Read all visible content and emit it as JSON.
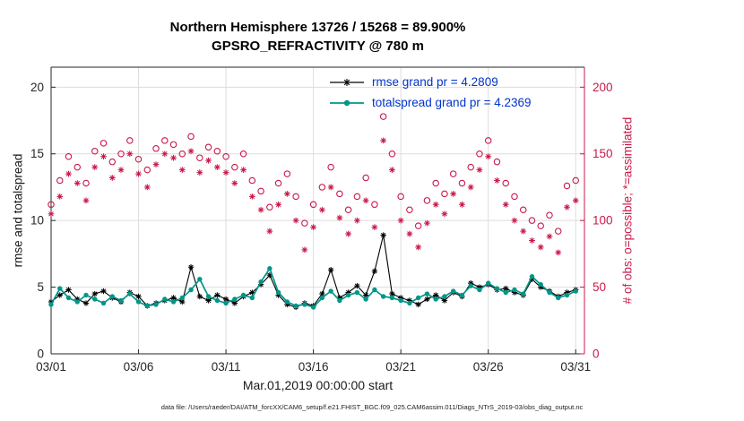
{
  "colors": {
    "obs_pink": "#C9184A",
    "rmse_black": "#000000",
    "spread_teal": "#009688",
    "legend_blue": "#0033CC",
    "axis_dark": "#262626",
    "grid_gray": "#DDDDDD"
  },
  "footer": {
    "caption": "data file: /Users/raeder/DAI/ATM_forcXX/CAM6_setup/f.e21.FHIST_BGC.f09_025.CAM6assim.011/Diags_NTrS_2019-03/obs_diag_output.nc"
  },
  "chart_data": {
    "type": "line",
    "title": "Northern Hemisphere 13726 / 15268 = 89.900%",
    "subtitle": "GPSRO_REFRACTIVITY @ 780 m",
    "xlabel": "Mar.01,2019 00:00:00 start",
    "ylabel_left": "rmse and totalspread",
    "ylabel_right": "# of obs: o=possible; *=assimilated",
    "grid": true,
    "legend_position": "top-center-inside",
    "xlim": [
      1,
      31.5
    ],
    "ylim_left": [
      0,
      21.5
    ],
    "ylim_right": [
      0,
      215
    ],
    "x_start_day": 1,
    "x_step_days": 0.5,
    "x_ticks": [
      {
        "day": 1,
        "label": "03/01"
      },
      {
        "day": 6,
        "label": "03/06"
      },
      {
        "day": 11,
        "label": "03/11"
      },
      {
        "day": 16,
        "label": "03/16"
      },
      {
        "day": 21,
        "label": "03/21"
      },
      {
        "day": 26,
        "label": "03/26"
      },
      {
        "day": 31,
        "label": "03/31"
      }
    ],
    "y_left_ticks": [
      0,
      5,
      10,
      15,
      20
    ],
    "y_right_ticks": [
      0,
      50,
      100,
      150,
      200
    ],
    "series": [
      {
        "name": "rmse grand pr = 4.2809",
        "axis": "left",
        "color": "#000000",
        "marker": "asterisk",
        "marker_size": 3.2,
        "line": true,
        "line_width": 1.1,
        "values": [
          3.9,
          4.4,
          4.8,
          4.1,
          3.8,
          4.5,
          4.7,
          4.2,
          3.9,
          4.6,
          4.3,
          3.6,
          3.8,
          4.0,
          4.2,
          3.9,
          6.5,
          4.3,
          4.0,
          4.4,
          4.1,
          3.8,
          4.3,
          4.6,
          5.2,
          5.9,
          4.4,
          3.7,
          3.5,
          3.8,
          3.6,
          4.5,
          6.3,
          4.2,
          4.6,
          5.1,
          4.4,
          6.2,
          8.9,
          4.5,
          4.2,
          4.0,
          3.7,
          4.1,
          4.4,
          4.0,
          4.6,
          4.3,
          5.3,
          5.0,
          5.2,
          4.8,
          4.9,
          4.6,
          4.4,
          5.6,
          5.0,
          4.7,
          4.3,
          4.6,
          4.8
        ]
      },
      {
        "name": "totalspread grand pr = 4.2369",
        "axis": "left",
        "color": "#009688",
        "marker": "dot",
        "marker_size": 2.7,
        "line": true,
        "line_width": 1.7,
        "values": [
          3.7,
          4.9,
          4.2,
          3.9,
          4.4,
          4.1,
          3.8,
          4.3,
          4.0,
          4.5,
          3.9,
          3.6,
          3.7,
          4.1,
          3.9,
          4.2,
          4.8,
          5.6,
          4.3,
          4.0,
          3.8,
          4.1,
          4.4,
          4.2,
          5.4,
          6.4,
          4.6,
          3.9,
          3.6,
          3.7,
          3.5,
          4.2,
          4.7,
          4.0,
          4.4,
          4.6,
          4.1,
          4.8,
          4.3,
          4.2,
          4.0,
          3.8,
          4.2,
          4.5,
          4.1,
          4.3,
          4.7,
          4.4,
          5.1,
          4.8,
          5.3,
          4.9,
          4.6,
          4.8,
          4.5,
          5.8,
          5.2,
          4.6,
          4.2,
          4.4,
          4.7
        ]
      },
      {
        "name": "# of obs possible",
        "axis": "right",
        "color": "#C9184A",
        "marker": "circle",
        "marker_size": 3.2,
        "line": false,
        "line_width": 0,
        "values": [
          112,
          130,
          148,
          140,
          128,
          152,
          158,
          144,
          150,
          160,
          146,
          138,
          154,
          160,
          157,
          150,
          163,
          147,
          155,
          152,
          148,
          140,
          150,
          130,
          122,
          110,
          128,
          135,
          118,
          98,
          112,
          125,
          140,
          120,
          108,
          118,
          132,
          112,
          178,
          150,
          118,
          108,
          96,
          115,
          128,
          120,
          135,
          128,
          140,
          150,
          160,
          144,
          128,
          118,
          108,
          100,
          96,
          104,
          92,
          126,
          130
        ]
      },
      {
        "name": "# of obs assimilated",
        "axis": "right",
        "color": "#C9184A",
        "marker": "asterisk",
        "marker_size": 3.4,
        "line": false,
        "line_width": 0,
        "values": [
          105,
          118,
          135,
          128,
          115,
          140,
          148,
          132,
          138,
          150,
          135,
          125,
          142,
          150,
          147,
          138,
          152,
          136,
          145,
          140,
          136,
          128,
          138,
          118,
          108,
          92,
          112,
          120,
          100,
          78,
          95,
          108,
          125,
          102,
          90,
          100,
          115,
          95,
          160,
          138,
          100,
          90,
          80,
          98,
          112,
          105,
          120,
          112,
          125,
          138,
          148,
          130,
          112,
          100,
          92,
          85,
          80,
          88,
          76,
          110,
          115
        ]
      }
    ]
  }
}
